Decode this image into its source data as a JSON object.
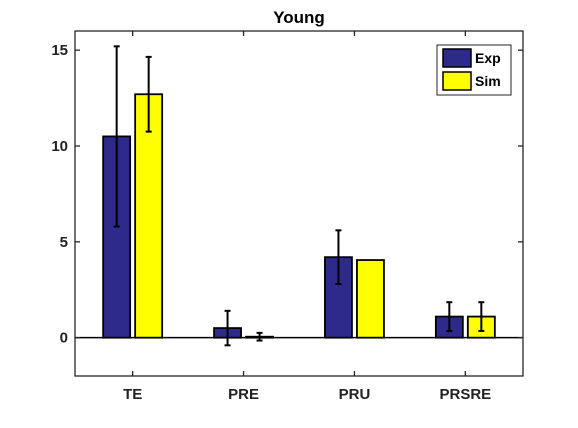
{
  "chart_data": {
    "type": "bar",
    "title": "Young",
    "xlabel": "",
    "ylabel": "",
    "categories": [
      "TE",
      "PRE",
      "PRU",
      "PRSRE"
    ],
    "ylim": [
      -2,
      16
    ],
    "yticks": [
      0,
      5,
      10,
      15
    ],
    "y_tick_labels": [
      "0",
      "5",
      "10",
      "15"
    ],
    "grid": false,
    "zero_line": true,
    "legend_position": "top-right",
    "series": [
      {
        "name": "Exp",
        "color": "#2e2a8c",
        "values": [
          10.5,
          0.5,
          4.2,
          1.1
        ],
        "errors": [
          4.7,
          0.9,
          1.4,
          0.75
        ]
      },
      {
        "name": "Sim",
        "color": "#ffff00",
        "values": [
          12.7,
          0.05,
          4.05,
          1.1
        ],
        "errors": [
          1.95,
          0.2,
          0.0,
          0.75
        ]
      }
    ]
  }
}
